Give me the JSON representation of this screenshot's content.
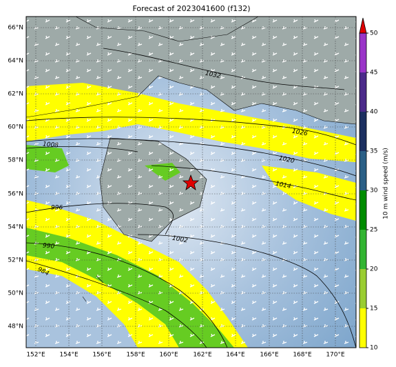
{
  "title": "Forecast of 2023041600 (f132)",
  "map": {
    "lat_labels": [
      "66°N",
      "64°N",
      "62°N",
      "60°N",
      "58°N",
      "56°N",
      "54°N",
      "52°N",
      "50°N",
      "48°N"
    ],
    "lon_labels": [
      "152°E",
      "154°E",
      "156°E",
      "158°E",
      "160°E",
      "162°E",
      "164°E",
      "166°E",
      "168°E",
      "170°E"
    ],
    "isobar_labels": [
      "1032",
      "1026",
      "1020",
      "1014",
      "1008",
      "1002",
      "996",
      "990",
      "984"
    ]
  },
  "colorbar": {
    "label": "10 m wind speed (m/s)",
    "ticks": [
      10,
      15,
      20,
      25,
      30,
      35,
      40,
      45,
      50
    ],
    "colors": [
      "#ffff00",
      "#9acd32",
      "#32b432",
      "#008c00",
      "#2a5f86",
      "#1c2f60",
      "#4b2a8a",
      "#9a34c8"
    ],
    "extend_color": "#e00000"
  }
}
